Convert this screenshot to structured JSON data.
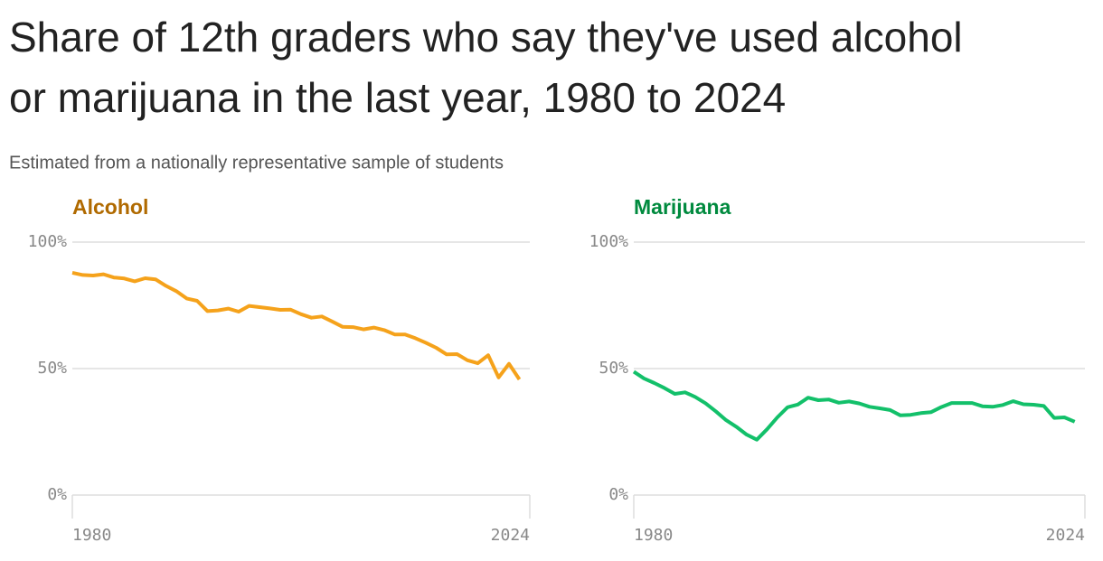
{
  "title": "Share of 12th graders who say they've used alcohol or marijuana in the last year, 1980 to 2024",
  "subtitle": "Estimated from a nationally representative sample of students",
  "chart_data": [
    {
      "type": "line",
      "title": "Alcohol",
      "color": "#f5a21b",
      "title_color": "#b06a00",
      "x": [
        1980,
        1981,
        1982,
        1983,
        1984,
        1985,
        1986,
        1987,
        1988,
        1989,
        1990,
        1991,
        1992,
        1993,
        1994,
        1995,
        1996,
        1997,
        1998,
        1999,
        2000,
        2001,
        2002,
        2003,
        2004,
        2005,
        2006,
        2007,
        2008,
        2009,
        2010,
        2011,
        2012,
        2013,
        2014,
        2015,
        2016,
        2017,
        2018,
        2019,
        2020,
        2021,
        2022,
        2023
      ],
      "values": [
        87.9,
        87.0,
        86.8,
        87.3,
        86.0,
        85.6,
        84.5,
        85.7,
        85.3,
        82.7,
        80.6,
        77.7,
        76.8,
        72.7,
        73.0,
        73.7,
        72.5,
        74.8,
        74.3,
        73.8,
        73.2,
        73.3,
        71.5,
        70.1,
        70.6,
        68.6,
        66.5,
        66.4,
        65.5,
        66.2,
        65.2,
        63.5,
        63.5,
        62.0,
        60.2,
        58.2,
        55.6,
        55.7,
        53.3,
        52.1,
        55.3,
        46.5,
        51.9,
        45.7
      ],
      "xlim": [
        1980,
        2024
      ],
      "xticks": [
        1980,
        2024
      ],
      "ylim": [
        0,
        100
      ],
      "yticks": [
        {
          "value": 0,
          "label": "0%"
        },
        {
          "value": 50,
          "label": "50%"
        },
        {
          "value": 100,
          "label": "100%"
        }
      ],
      "grid": true
    },
    {
      "type": "line",
      "title": "Marijuana",
      "color": "#13c06a",
      "title_color": "#008a3e",
      "x": [
        1980,
        1981,
        1982,
        1983,
        1984,
        1985,
        1986,
        1987,
        1988,
        1989,
        1990,
        1991,
        1992,
        1993,
        1994,
        1995,
        1996,
        1997,
        1998,
        1999,
        2000,
        2001,
        2002,
        2003,
        2004,
        2005,
        2006,
        2007,
        2008,
        2009,
        2010,
        2011,
        2012,
        2013,
        2014,
        2015,
        2016,
        2017,
        2018,
        2019,
        2020,
        2021,
        2022,
        2023
      ],
      "values": [
        48.8,
        46.1,
        44.3,
        42.3,
        40.0,
        40.6,
        38.8,
        36.3,
        33.1,
        29.6,
        27.0,
        23.9,
        21.9,
        26.0,
        30.7,
        34.7,
        35.8,
        38.5,
        37.5,
        37.8,
        36.5,
        37.0,
        36.2,
        34.9,
        34.3,
        33.6,
        31.5,
        31.7,
        32.4,
        32.8,
        34.8,
        36.4,
        36.4,
        36.4,
        35.1,
        34.9,
        35.6,
        37.1,
        35.9,
        35.7,
        35.2,
        30.5,
        30.7,
        29.0
      ],
      "xlim": [
        1980,
        2024
      ],
      "xticks": [
        1980,
        2024
      ],
      "ylim": [
        0,
        100
      ],
      "yticks": [
        {
          "value": 0,
          "label": "0%"
        },
        {
          "value": 50,
          "label": "50%"
        },
        {
          "value": 100,
          "label": "100%"
        }
      ],
      "grid": true
    }
  ]
}
